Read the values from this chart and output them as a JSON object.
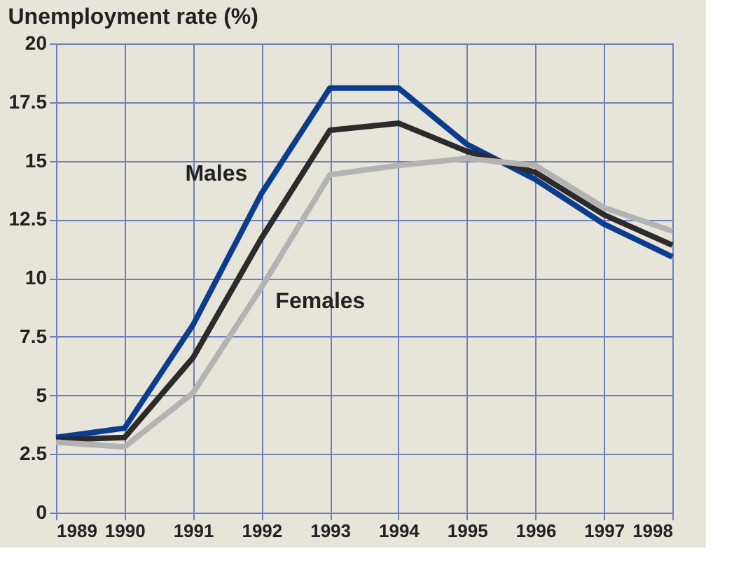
{
  "chart_data": {
    "type": "line",
    "title": "Unemployment rate (%)",
    "x": [
      1989,
      1990,
      1991,
      1992,
      1993,
      1994,
      1995,
      1996,
      1997,
      1998
    ],
    "series": [
      {
        "name": "Males",
        "color": "#0b3d8f",
        "values": [
          3.2,
          3.6,
          8.0,
          13.6,
          18.1,
          18.1,
          15.7,
          14.2,
          12.3,
          10.9
        ]
      },
      {
        "color": "#2b2b2b",
        "values": [
          3.1,
          3.2,
          6.6,
          11.7,
          16.3,
          16.6,
          15.4,
          14.5,
          12.7,
          11.4
        ]
      },
      {
        "name": "Females",
        "color": "#b3b3b3",
        "values": [
          3.0,
          2.8,
          5.1,
          9.6,
          14.4,
          14.8,
          15.1,
          14.8,
          13.0,
          12.0
        ]
      }
    ],
    "xlim": [
      1989,
      1998
    ],
    "xticks": [
      1989,
      1990,
      1991,
      1992,
      1993,
      1994,
      1995,
      1996,
      1997,
      1998
    ],
    "ylim": [
      0,
      20
    ],
    "yticks": [
      0,
      2.5,
      5,
      7.5,
      10,
      12.5,
      15,
      17.5,
      20
    ],
    "grid": true,
    "legend": false,
    "marker": "none",
    "line_style": "solid"
  }
}
